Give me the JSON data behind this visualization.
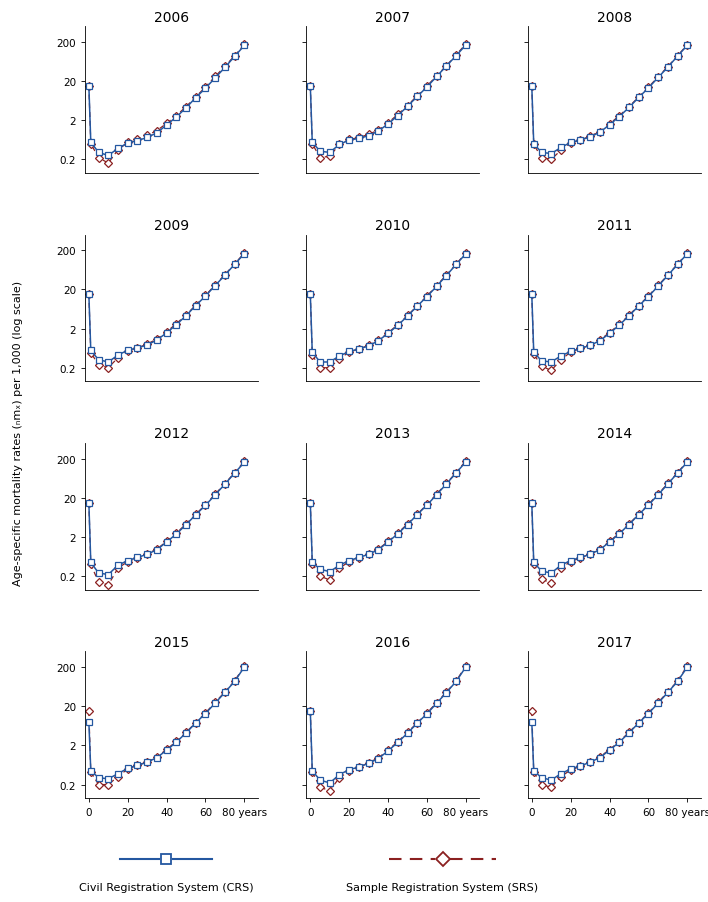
{
  "years": [
    2006,
    2007,
    2008,
    2009,
    2010,
    2011,
    2012,
    2013,
    2014,
    2015,
    2016,
    2017
  ],
  "age_groups": [
    0,
    1,
    5,
    10,
    15,
    20,
    25,
    30,
    35,
    40,
    45,
    50,
    55,
    60,
    65,
    70,
    75,
    80
  ],
  "ylim_log": [
    0.09,
    500
  ],
  "yticks": [
    0.2,
    2,
    20,
    200
  ],
  "crs_color": "#2457a0",
  "srs_color": "#8b2020",
  "crs_data": {
    "2006": [
      15.0,
      0.55,
      0.3,
      0.25,
      0.38,
      0.52,
      0.6,
      0.72,
      0.95,
      1.5,
      2.4,
      4.1,
      7.5,
      13.0,
      24.0,
      44.0,
      85.0,
      160.0
    ],
    "2007": [
      15.0,
      0.55,
      0.32,
      0.3,
      0.48,
      0.62,
      0.68,
      0.8,
      1.05,
      1.6,
      2.6,
      4.5,
      8.0,
      14.0,
      26.0,
      48.0,
      88.0,
      165.0
    ],
    "2008": [
      15.0,
      0.5,
      0.3,
      0.28,
      0.4,
      0.54,
      0.62,
      0.74,
      0.98,
      1.52,
      2.45,
      4.2,
      7.6,
      13.2,
      24.5,
      45.0,
      86.0,
      162.0
    ],
    "2009": [
      15.0,
      0.55,
      0.32,
      0.28,
      0.42,
      0.56,
      0.64,
      0.76,
      1.02,
      1.55,
      2.5,
      4.25,
      7.7,
      13.5,
      25.0,
      46.0,
      87.0,
      163.0
    ],
    "2010": [
      15.0,
      0.5,
      0.28,
      0.28,
      0.4,
      0.52,
      0.6,
      0.72,
      0.98,
      1.5,
      2.42,
      4.15,
      7.5,
      13.0,
      24.0,
      45.0,
      86.0,
      162.0
    ],
    "2011": [
      15.0,
      0.5,
      0.3,
      0.28,
      0.4,
      0.52,
      0.62,
      0.74,
      0.98,
      1.5,
      2.45,
      4.2,
      7.55,
      13.1,
      24.2,
      45.5,
      86.5,
      162.0
    ],
    "2012": [
      15.0,
      0.45,
      0.24,
      0.22,
      0.38,
      0.5,
      0.6,
      0.72,
      0.95,
      1.48,
      2.38,
      4.1,
      7.4,
      12.8,
      23.8,
      44.5,
      85.5,
      160.0
    ],
    "2013": [
      15.0,
      0.45,
      0.3,
      0.26,
      0.38,
      0.5,
      0.6,
      0.72,
      0.95,
      1.48,
      2.42,
      4.12,
      7.45,
      13.0,
      24.0,
      45.0,
      86.0,
      165.0
    ],
    "2014": [
      15.0,
      0.45,
      0.27,
      0.24,
      0.38,
      0.5,
      0.6,
      0.72,
      0.95,
      1.48,
      2.42,
      4.15,
      7.45,
      13.0,
      24.0,
      45.0,
      86.0,
      162.0
    ],
    "2015": [
      8.0,
      0.45,
      0.3,
      0.28,
      0.38,
      0.52,
      0.62,
      0.74,
      0.98,
      1.5,
      2.42,
      4.15,
      7.5,
      13.0,
      24.0,
      45.0,
      86.0,
      200.0
    ],
    "2016": [
      15.0,
      0.45,
      0.26,
      0.22,
      0.36,
      0.48,
      0.56,
      0.7,
      0.92,
      1.45,
      2.38,
      4.1,
      7.4,
      12.8,
      23.8,
      44.5,
      85.5,
      200.0
    ],
    "2017": [
      8.0,
      0.45,
      0.3,
      0.26,
      0.38,
      0.5,
      0.6,
      0.74,
      0.98,
      1.5,
      2.42,
      4.15,
      7.5,
      13.0,
      24.0,
      45.0,
      86.0,
      200.0
    ]
  },
  "srs_data": {
    "2006": [
      15.0,
      0.5,
      0.22,
      0.16,
      0.35,
      0.54,
      0.66,
      0.82,
      1.08,
      1.65,
      2.6,
      4.4,
      7.8,
      14.0,
      26.0,
      47.0,
      88.0,
      170.0
    ],
    "2007": [
      15.0,
      0.5,
      0.22,
      0.24,
      0.48,
      0.64,
      0.72,
      0.86,
      1.12,
      1.7,
      2.8,
      4.7,
      8.4,
      14.8,
      27.0,
      49.0,
      92.0,
      175.0
    ],
    "2008": [
      15.0,
      0.48,
      0.22,
      0.2,
      0.34,
      0.52,
      0.62,
      0.78,
      1.02,
      1.6,
      2.58,
      4.38,
      7.8,
      13.8,
      25.5,
      46.5,
      88.0,
      168.0
    ],
    "2009": [
      15.0,
      0.48,
      0.24,
      0.2,
      0.36,
      0.54,
      0.64,
      0.8,
      1.08,
      1.65,
      2.65,
      4.45,
      7.9,
      14.0,
      26.0,
      47.5,
      89.0,
      170.0
    ],
    "2010": [
      15.0,
      0.42,
      0.2,
      0.2,
      0.34,
      0.5,
      0.6,
      0.74,
      1.0,
      1.56,
      2.5,
      4.3,
      7.6,
      13.5,
      25.0,
      46.5,
      88.0,
      170.0
    ],
    "2011": [
      15.0,
      0.45,
      0.22,
      0.17,
      0.32,
      0.5,
      0.62,
      0.76,
      1.02,
      1.58,
      2.55,
      4.38,
      7.7,
      13.6,
      25.2,
      46.5,
      88.5,
      170.0
    ],
    "2012": [
      15.0,
      0.4,
      0.14,
      0.12,
      0.32,
      0.47,
      0.58,
      0.74,
      0.98,
      1.54,
      2.5,
      4.28,
      7.55,
      13.4,
      24.8,
      46.0,
      87.5,
      170.0
    ],
    "2013": [
      15.0,
      0.42,
      0.2,
      0.16,
      0.32,
      0.47,
      0.58,
      0.74,
      0.98,
      1.54,
      2.52,
      4.3,
      7.58,
      13.5,
      25.0,
      46.2,
      88.0,
      175.0
    ],
    "2014": [
      15.0,
      0.42,
      0.17,
      0.13,
      0.32,
      0.47,
      0.58,
      0.74,
      0.98,
      1.54,
      2.5,
      4.28,
      7.58,
      13.5,
      25.0,
      46.2,
      88.0,
      170.0
    ],
    "2015": [
      15.0,
      0.42,
      0.2,
      0.2,
      0.32,
      0.5,
      0.62,
      0.76,
      1.02,
      1.58,
      2.52,
      4.32,
      7.6,
      13.5,
      25.0,
      46.5,
      88.0,
      215.0
    ],
    "2016": [
      15.0,
      0.42,
      0.17,
      0.14,
      0.3,
      0.44,
      0.55,
      0.72,
      0.96,
      1.52,
      2.48,
      4.28,
      7.55,
      13.4,
      24.8,
      46.0,
      87.5,
      215.0
    ],
    "2017": [
      15.0,
      0.42,
      0.2,
      0.17,
      0.32,
      0.47,
      0.58,
      0.74,
      1.02,
      1.56,
      2.5,
      4.32,
      7.6,
      13.5,
      25.0,
      46.5,
      88.0,
      215.0
    ]
  },
  "ylabel": "Age-specific mortality rates (ₙmₓ) per 1,000 (log scale)",
  "legend_crs": "Civil Registration System (CRS)",
  "legend_srs": "Sample Registration System (SRS)"
}
